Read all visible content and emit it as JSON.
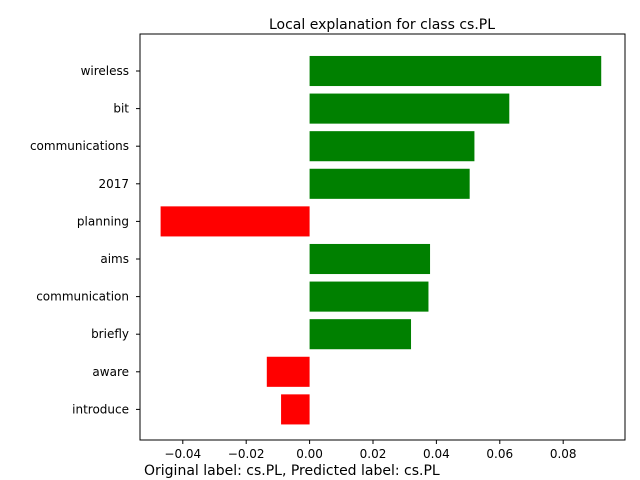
{
  "chart_data": {
    "type": "bar",
    "orientation": "horizontal",
    "title": "Local explanation for class cs.PL",
    "xlabel": "",
    "ylabel": "",
    "categories": [
      "wireless",
      "bit",
      "communications",
      "2017",
      "planning",
      "aims",
      "communication",
      "briefly",
      "aware",
      "introduce"
    ],
    "values": [
      0.092,
      0.063,
      0.052,
      0.0505,
      -0.047,
      0.038,
      0.0375,
      0.032,
      -0.0135,
      -0.009
    ],
    "xlim": [
      -0.0535,
      0.0995
    ],
    "xticks": [
      -0.04,
      -0.02,
      0.0,
      0.02,
      0.04,
      0.06,
      0.08
    ],
    "xtick_labels": [
      "−0.04",
      "−0.02",
      "0.00",
      "0.02",
      "0.04",
      "0.06",
      "0.08"
    ],
    "grid": false,
    "colors": {
      "positive": "#008000",
      "negative": "#ff0000"
    }
  },
  "footer": "Original label: cs.PL, Predicted label: cs.PL"
}
